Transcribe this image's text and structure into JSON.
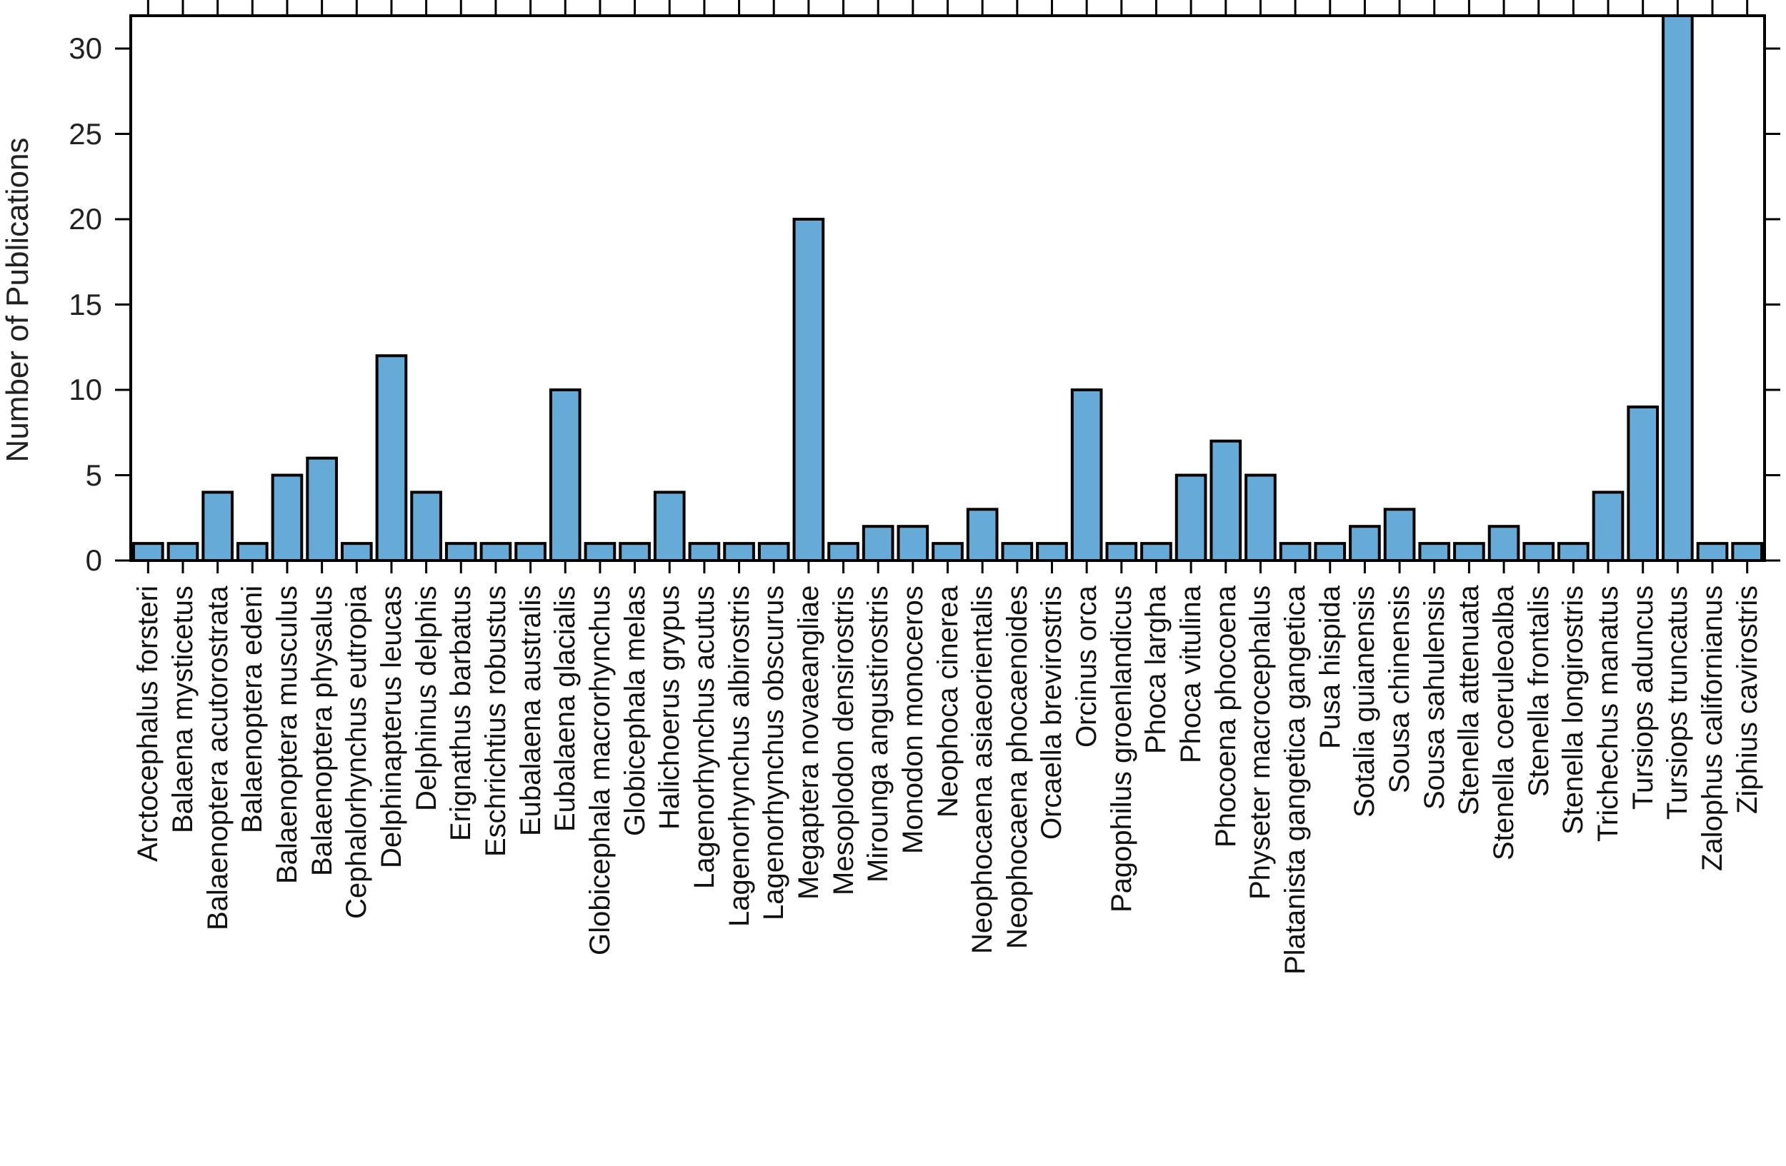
{
  "chart_data": {
    "type": "bar",
    "title": "",
    "xlabel": "",
    "ylabel": "Number of Publications",
    "ylim": [
      0,
      32
    ],
    "yticks": [
      0,
      5,
      10,
      15,
      20,
      25,
      30
    ],
    "grid": false,
    "legend": null,
    "bar_color": "#66aad8",
    "bar_edge_color": "#000000",
    "categories": [
      "Arctocephalus forsteri",
      "Balaena mysticetus",
      "Balaenoptera acutorostrata",
      "Balaenoptera edeni",
      "Balaenoptera musculus",
      "Balaenoptera physalus",
      "Cephalorhynchus eutropia",
      "Delphinapterus leucas",
      "Delphinus delphis",
      "Erignathus barbatus",
      "Eschrichtius robustus",
      "Eubalaena australis",
      "Eubalaena glacialis",
      "Globicephala macrorhynchus",
      "Globicephala melas",
      "Halichoerus grypus",
      "Lagenorhynchus acutus",
      "Lagenorhynchus albirostris",
      "Lagenorhynchus obscurus",
      "Megaptera novaeangliae",
      "Mesoplodon densirostris",
      "Mirounga angustirostris",
      "Monodon monoceros",
      "Neophoca cinerea",
      "Neophocaena asiaeorientalis",
      "Neophocaena phocaenoides",
      "Orcaella brevirostris",
      "Orcinus orca",
      "Pagophilus groenlandicus",
      "Phoca largha",
      "Phoca vitulina",
      "Phocoena phocoena",
      "Physeter macrocephalus",
      "Platanista gangetica gangetica",
      "Pusa hispida",
      "Sotalia guianensis",
      "Sousa chinensis",
      "Sousa sahulensis",
      "Stenella attenuata",
      "Stenella coeruleoalba",
      "Stenella frontalis",
      "Stenella longirostris",
      "Trichechus manatus",
      "Tursiops aduncus",
      "Tursiops truncatus",
      "Zalophus californianus",
      "Ziphius cavirostris"
    ],
    "values": [
      1,
      1,
      4,
      1,
      5,
      6,
      1,
      12,
      4,
      1,
      1,
      1,
      10,
      1,
      1,
      4,
      1,
      1,
      1,
      20,
      1,
      2,
      2,
      1,
      3,
      1,
      1,
      10,
      1,
      1,
      5,
      7,
      5,
      1,
      1,
      2,
      3,
      1,
      1,
      2,
      1,
      1,
      4,
      9,
      32,
      1,
      1
    ]
  }
}
